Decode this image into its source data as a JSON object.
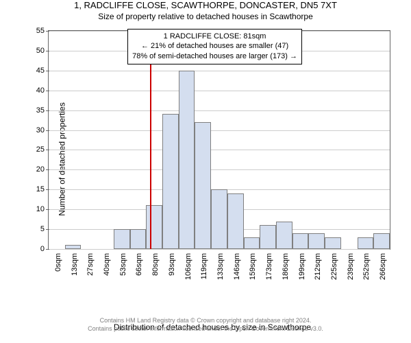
{
  "title": "1, RADCLIFFE CLOSE, SCAWTHORPE, DONCASTER, DN5 7XT",
  "subtitle": "Size of property relative to detached houses in Scawthorpe",
  "ylabel": "Number of detached properties",
  "xlabel": "Distribution of detached houses by size in Scawthorpe",
  "footer_line1": "Contains HM Land Registry data © Crown copyright and database right 2024.",
  "footer_line2": "Contains public sector information licensed under the Open Government Licence v3.0.",
  "chart": {
    "type": "histogram",
    "ylim": [
      0,
      55
    ],
    "yticks": [
      0,
      5,
      10,
      15,
      20,
      25,
      30,
      35,
      40,
      45,
      50,
      55
    ],
    "x_categories": [
      "0sqm",
      "13sqm",
      "27sqm",
      "40sqm",
      "53sqm",
      "66sqm",
      "80sqm",
      "93sqm",
      "106sqm",
      "119sqm",
      "133sqm",
      "146sqm",
      "159sqm",
      "173sqm",
      "186sqm",
      "199sqm",
      "212sqm",
      "225sqm",
      "239sqm",
      "252sqm",
      "266sqm"
    ],
    "values": [
      0,
      1,
      0,
      0,
      5,
      5,
      11,
      34,
      45,
      32,
      15,
      14,
      3,
      6,
      7,
      4,
      4,
      3,
      0,
      3,
      4
    ],
    "bar_fill": "#d4deef",
    "bar_stroke": "#7f7f7f",
    "grid_color": "#cccccc",
    "axis_color": "#666666",
    "background": "#ffffff",
    "ref_line_value": 81,
    "ref_line_color": "#cc0000",
    "title_fontsize": 13,
    "subtitle_fontsize": 12,
    "label_fontsize": 12,
    "tick_fontsize": 11,
    "annotation": {
      "line1": "1 RADCLIFFE CLOSE: 81sqm",
      "line2": "← 21% of detached houses are smaller (47)",
      "line3": "78% of semi-detached houses are larger (173) →",
      "box_bg": "#ffffff",
      "box_border": "#000000",
      "fontsize": 11,
      "x_sqm": 133,
      "y_count": 51
    }
  }
}
